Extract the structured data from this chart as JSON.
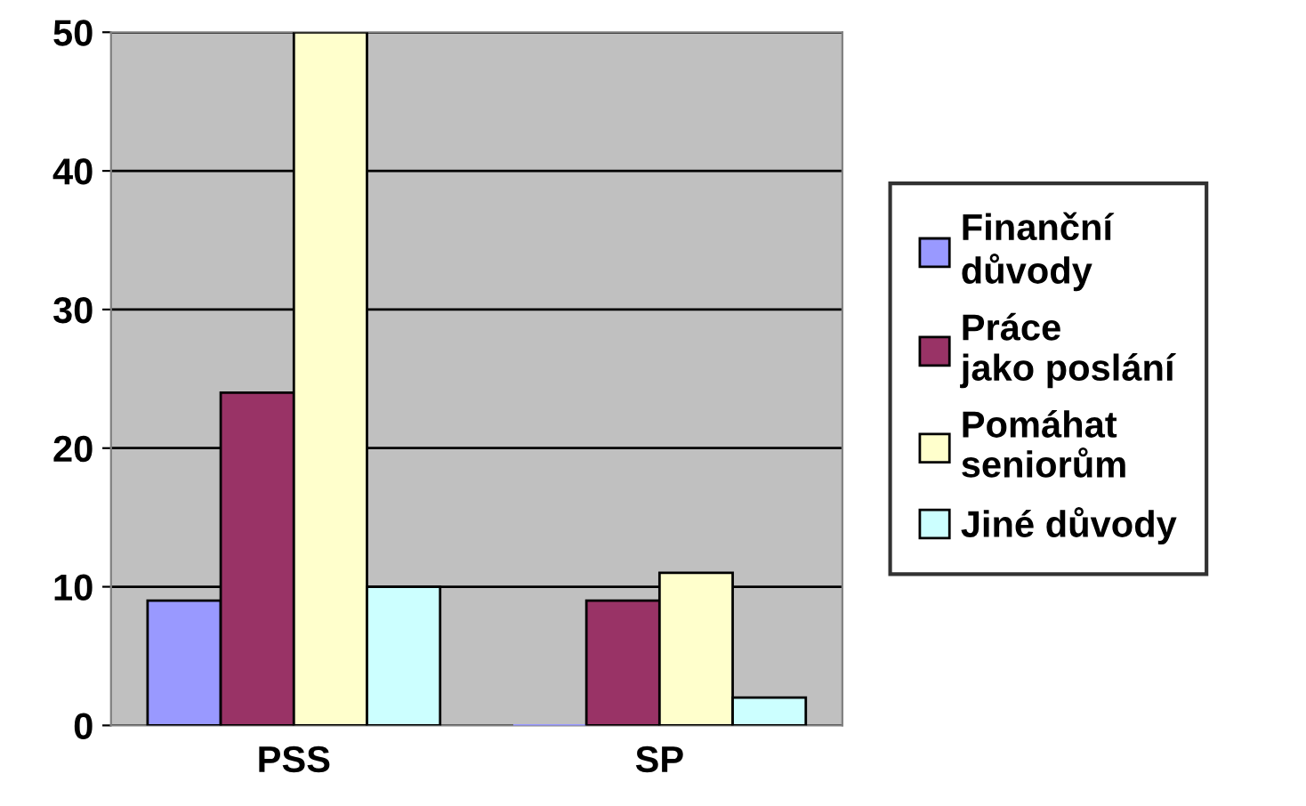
{
  "chart_data": {
    "type": "bar",
    "categories": [
      "PSS",
      "SP"
    ],
    "series": [
      {
        "name": "Finanční důvody",
        "color": "#9999ff",
        "values": [
          9,
          0
        ]
      },
      {
        "name": "Práce jako poslání",
        "color": "#993366",
        "values": [
          24,
          9
        ]
      },
      {
        "name": "Pomáhat seniorům",
        "color": "#ffffcc",
        "values": [
          50,
          11
        ]
      },
      {
        "name": "Jiné důvody",
        "color": "#ccffff",
        "values": [
          10,
          2
        ]
      }
    ],
    "ylim": [
      0,
      50
    ],
    "yticks": [
      0,
      10,
      20,
      30,
      40,
      50
    ],
    "grid": "y",
    "legend": "right"
  }
}
